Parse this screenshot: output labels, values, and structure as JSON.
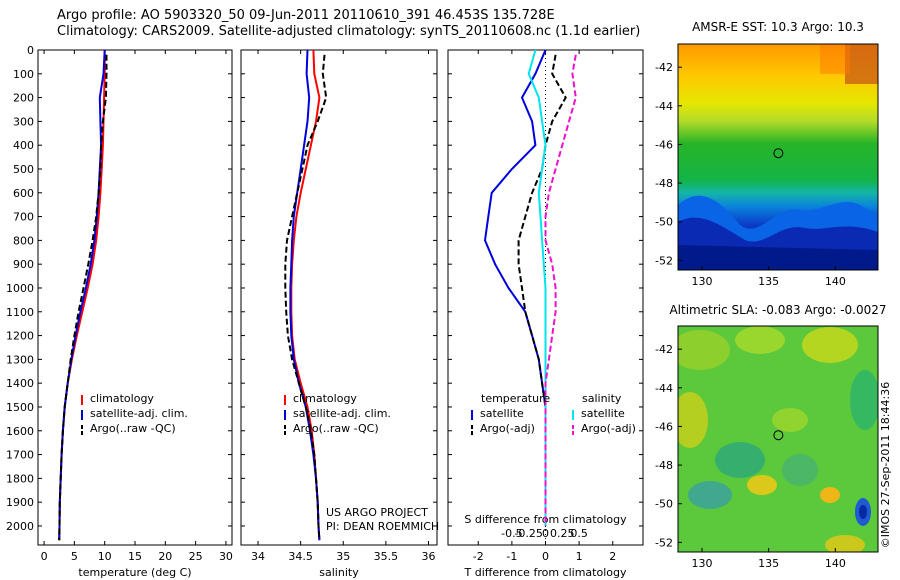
{
  "header": {
    "line1": "Argo profile: AO 5903320_50 09-Jun-2011 20110610_391 46.453S 135.728E",
    "line2": "Climatology: CARS2009. Satellite-adjusted climatology: synTS_20110608.nc (1.1d earlier)"
  },
  "colors": {
    "climatology": "#ff0000",
    "satellite": "#0000dd",
    "argo": "#000000",
    "salinity_satellite": "#00e5ee",
    "salinity_argo": "#ee11cc"
  },
  "chart_data": [
    {
      "id": "temperature",
      "type": "line",
      "xlabel": "temperature (deg C)",
      "xlim": [
        -1,
        31
      ],
      "xticks": [
        0,
        5,
        10,
        15,
        20,
        25,
        30
      ],
      "xtick_labels": [
        "0",
        "5",
        "10",
        "15",
        "20",
        "25",
        "30"
      ],
      "ylim": [
        0,
        2080
      ],
      "yticks": [
        0,
        100,
        200,
        300,
        400,
        500,
        600,
        700,
        800,
        900,
        1000,
        1100,
        1200,
        1300,
        1400,
        1500,
        1600,
        1700,
        1800,
        1900,
        2000
      ],
      "legend": [
        "climatology",
        "satellite-adj. clim.",
        "Argo(..raw -QC)"
      ],
      "series": [
        {
          "name": "climatology",
          "style": "solid",
          "color": "#ff0000",
          "x": [
            10.0,
            10.0,
            9.9,
            9.8,
            9.7,
            9.5,
            9.3,
            9.0,
            8.6,
            8.0,
            7.2,
            6.3,
            5.4,
            4.6,
            3.9,
            3.4,
            3.1,
            2.9,
            2.75,
            2.6,
            2.55,
            2.5
          ],
          "depth": [
            0,
            100,
            200,
            300,
            400,
            500,
            600,
            700,
            800,
            900,
            1000,
            1100,
            1200,
            1300,
            1400,
            1500,
            1600,
            1700,
            1800,
            1900,
            2000,
            2060
          ]
        },
        {
          "name": "satellite-adj. clim.",
          "style": "solid",
          "color": "#0000dd",
          "x": [
            10.0,
            9.8,
            9.2,
            9.3,
            9.4,
            9.2,
            9.0,
            8.7,
            8.3,
            7.7,
            6.9,
            6.0,
            5.2,
            4.5,
            3.9,
            3.4,
            3.1,
            2.9,
            2.75,
            2.6,
            2.55,
            2.5
          ],
          "depth": [
            0,
            100,
            200,
            300,
            400,
            500,
            600,
            700,
            800,
            900,
            1000,
            1100,
            1200,
            1300,
            1400,
            1500,
            1600,
            1700,
            1800,
            1900,
            2000,
            2060
          ]
        },
        {
          "name": "Argo(..raw -QC)",
          "style": "dashed",
          "color": "#000000",
          "x": [
            10.3,
            10.3,
            10.2,
            9.7,
            9.4,
            9.3,
            9.0,
            8.6,
            8.0,
            7.3,
            6.5,
            5.7,
            5.0,
            4.4,
            3.9,
            3.4,
            3.1,
            2.9,
            2.75,
            2.6,
            2.55,
            2.5
          ],
          "depth": [
            20,
            100,
            200,
            300,
            400,
            500,
            600,
            700,
            800,
            900,
            1000,
            1100,
            1200,
            1300,
            1400,
            1500,
            1600,
            1700,
            1800,
            1900,
            2000,
            2060
          ]
        }
      ]
    },
    {
      "id": "salinity",
      "type": "line",
      "xlabel": "salinity",
      "xlim": [
        33.8,
        36.1
      ],
      "xticks": [
        34,
        34.5,
        35,
        35.5,
        36
      ],
      "xtick_labels": [
        "34",
        "34.5",
        "35",
        "35.5",
        "36"
      ],
      "ylim": [
        0,
        2080
      ],
      "legend": [
        "climatology",
        "satellite-adj. clim.",
        "Argo(..raw -QC)"
      ],
      "annotation": [
        "US ARGO PROJECT",
        "PI: DEAN ROEMMICH"
      ],
      "series": [
        {
          "name": "climatology",
          "style": "solid",
          "color": "#ff0000",
          "x": [
            34.65,
            34.66,
            34.72,
            34.68,
            34.62,
            34.56,
            34.5,
            34.45,
            34.42,
            34.4,
            34.39,
            34.39,
            34.4,
            34.43,
            34.5,
            34.58,
            34.63,
            34.66,
            34.68,
            34.7,
            34.71,
            34.72
          ],
          "depth": [
            0,
            100,
            200,
            300,
            400,
            500,
            600,
            700,
            800,
            900,
            1000,
            1100,
            1200,
            1300,
            1400,
            1500,
            1600,
            1700,
            1800,
            1900,
            2000,
            2060
          ]
        },
        {
          "name": "satellite-adj. clim.",
          "style": "solid",
          "color": "#0000dd",
          "x": [
            34.58,
            34.57,
            34.6,
            34.58,
            34.54,
            34.5,
            34.46,
            34.42,
            34.4,
            34.39,
            34.38,
            34.38,
            34.39,
            34.42,
            34.48,
            34.56,
            34.61,
            34.65,
            34.68,
            34.7,
            34.71,
            34.72
          ],
          "depth": [
            0,
            100,
            200,
            300,
            400,
            500,
            600,
            700,
            800,
            900,
            1000,
            1100,
            1200,
            1300,
            1400,
            1500,
            1600,
            1700,
            1800,
            1900,
            2000,
            2060
          ]
        },
        {
          "name": "Argo(..raw -QC)",
          "style": "dashed",
          "color": "#000000",
          "x": [
            34.78,
            34.76,
            34.8,
            34.7,
            34.58,
            34.52,
            34.46,
            34.4,
            34.34,
            34.32,
            34.32,
            34.33,
            34.35,
            34.4,
            34.48,
            34.56,
            34.62,
            34.66,
            34.68,
            34.7,
            34.71,
            34.72
          ],
          "depth": [
            20,
            100,
            200,
            300,
            400,
            500,
            600,
            700,
            800,
            900,
            1000,
            1100,
            1200,
            1300,
            1400,
            1500,
            1600,
            1700,
            1800,
            1900,
            2000,
            2060
          ]
        }
      ]
    },
    {
      "id": "difference",
      "type": "line",
      "xlabel": "T difference from climatology",
      "toplabel": "S difference from climatology",
      "xlim": [
        -2.9,
        2.9
      ],
      "xticks": [
        -2,
        -1,
        0,
        1,
        2
      ],
      "xtick_labels": [
        "-2",
        "-1",
        "0",
        "1",
        "2"
      ],
      "top_ticks": [
        -1.0,
        -0.5,
        0,
        0.5,
        1.0
      ],
      "top_tick_labels": [
        "-0.5",
        "-0.25",
        "0",
        "0.25",
        "0.5"
      ],
      "ylim": [
        0,
        2080
      ],
      "legend_headers": [
        "temperature",
        "salinity"
      ],
      "legend": [
        "satellite",
        "Argo(-adj)",
        "satellite",
        "Argo(-adj)"
      ],
      "series": [
        {
          "name": "satellite",
          "group": "temperature",
          "style": "solid",
          "color": "#0000dd",
          "x": [
            0.0,
            -0.3,
            -0.7,
            -0.4,
            -0.3,
            -1.0,
            -1.6,
            -1.7,
            -1.8,
            -1.5,
            -1.1,
            -0.6,
            -0.4,
            -0.2,
            -0.1,
            0.0,
            0.0,
            0.0,
            0.0,
            0.0,
            0.0
          ],
          "depth": [
            0,
            100,
            200,
            300,
            400,
            500,
            600,
            700,
            800,
            900,
            1000,
            1100,
            1200,
            1300,
            1400,
            1500,
            1600,
            1700,
            1800,
            1900,
            2000
          ]
        },
        {
          "name": "Argo(-adj)",
          "group": "temperature",
          "style": "dashed",
          "color": "#000000",
          "x": [
            0.3,
            0.2,
            0.6,
            0.2,
            0.0,
            -0.1,
            -0.4,
            -0.6,
            -0.8,
            -0.8,
            -0.7,
            -0.6,
            -0.4,
            -0.2,
            -0.1,
            0.0,
            0.0,
            0.0,
            0.0,
            0.0,
            0.0
          ],
          "depth": [
            20,
            100,
            200,
            300,
            400,
            500,
            600,
            700,
            800,
            900,
            1000,
            1100,
            1200,
            1300,
            1400,
            1500,
            1600,
            1700,
            1800,
            1900,
            2000
          ]
        },
        {
          "name": "satellite",
          "group": "salinity",
          "style": "solid",
          "color": "#00e5ee",
          "x": [
            -0.3,
            -0.5,
            -0.2,
            -0.1,
            0.0,
            -0.1,
            -0.2,
            -0.15,
            -0.1,
            -0.05,
            0.0,
            0.0,
            0.0,
            0.0,
            0.0,
            0.0,
            0.0,
            0.0,
            0.0,
            0.0,
            0.0
          ],
          "depth": [
            0,
            100,
            200,
            300,
            400,
            500,
            600,
            700,
            800,
            900,
            1000,
            1100,
            1200,
            1300,
            1400,
            1500,
            1600,
            1700,
            1800,
            1900,
            2000
          ]
        },
        {
          "name": "Argo(-adj)",
          "group": "salinity",
          "style": "dashed",
          "color": "#ee11cc",
          "x": [
            0.9,
            0.8,
            0.9,
            0.7,
            0.5,
            0.3,
            0.1,
            0.0,
            0.0,
            0.2,
            0.3,
            0.3,
            0.2,
            0.1,
            0.0,
            0.0,
            0.0,
            0.0,
            0.0,
            0.0,
            0.0
          ],
          "depth": [
            20,
            100,
            200,
            300,
            400,
            500,
            600,
            700,
            800,
            900,
            1000,
            1100,
            1200,
            1300,
            1400,
            1500,
            1600,
            1700,
            1800,
            1900,
            2000
          ]
        }
      ]
    },
    {
      "id": "sst_map",
      "type": "heatmap",
      "title": "AMSR-E SST: 10.3 Argo: 10.3",
      "xlim": [
        128.2,
        143.2
      ],
      "ylim": [
        -52.5,
        -40.8
      ],
      "xticks": [
        130,
        135,
        140
      ],
      "yticks": [
        -42,
        -44,
        -46,
        -48,
        -50,
        -52
      ],
      "marker": {
        "lon": 135.728,
        "lat": -46.453
      },
      "colormap": "jet"
    },
    {
      "id": "sla_map",
      "type": "heatmap",
      "title": "Altimetric SLA: -0.083 Argo: -0.0027",
      "xlim": [
        128.2,
        143.2
      ],
      "ylim": [
        -52.5,
        -40.8
      ],
      "xticks": [
        130,
        135,
        140
      ],
      "yticks": [
        -42,
        -44,
        -46,
        -48,
        -50,
        -52
      ],
      "marker": {
        "lon": 135.728,
        "lat": -46.453
      },
      "colormap": "jet"
    }
  ],
  "footer": {
    "credit": "©IMOS 27-Sep-2011 18:44:36"
  }
}
